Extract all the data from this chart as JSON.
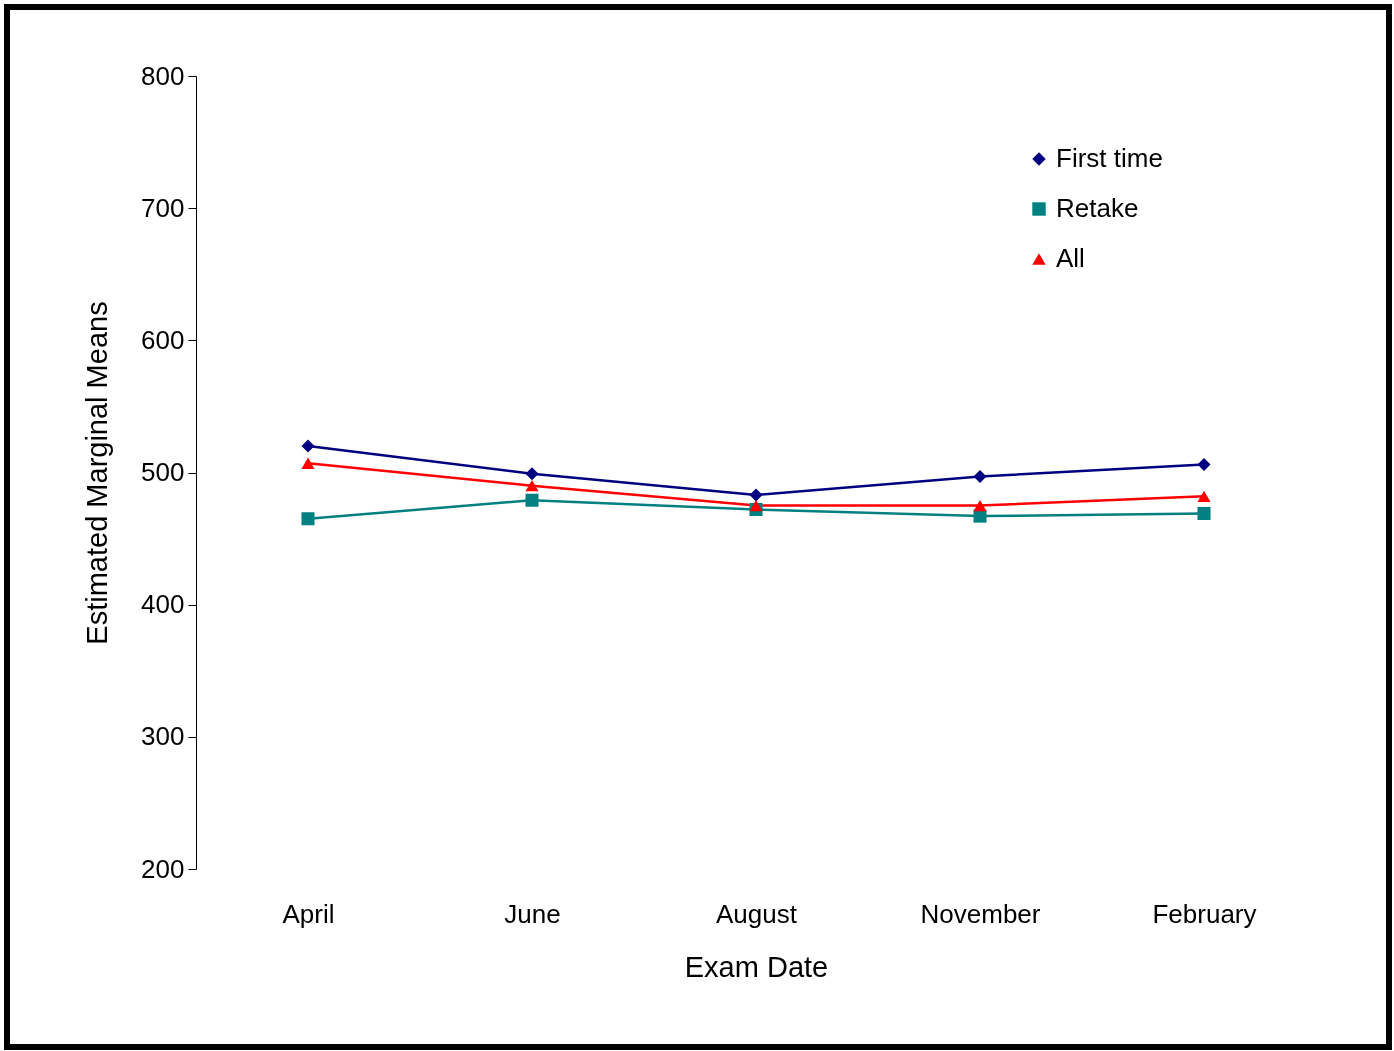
{
  "chart_data": {
    "type": "line",
    "xlabel": "Exam Date",
    "ylabel": "Estimated Marginal Means",
    "categories": [
      "April",
      "June",
      "August",
      "November",
      "February"
    ],
    "series": [
      {
        "name": "First time",
        "color": "#000080",
        "marker": "diamond",
        "values": [
          520,
          499,
          483,
          497,
          506
        ]
      },
      {
        "name": "Retake",
        "color": "#008080",
        "marker": "square",
        "values": [
          465,
          479,
          472,
          467,
          469
        ]
      },
      {
        "name": "All",
        "color": "#ff0000",
        "marker": "triangle",
        "values": [
          507,
          490,
          475,
          475,
          482
        ]
      }
    ],
    "ylim": [
      200,
      800
    ],
    "yticks": [
      200,
      300,
      400,
      500,
      600,
      700,
      800
    ],
    "grid": false,
    "legend": "top right",
    "line_style": "solid"
  }
}
